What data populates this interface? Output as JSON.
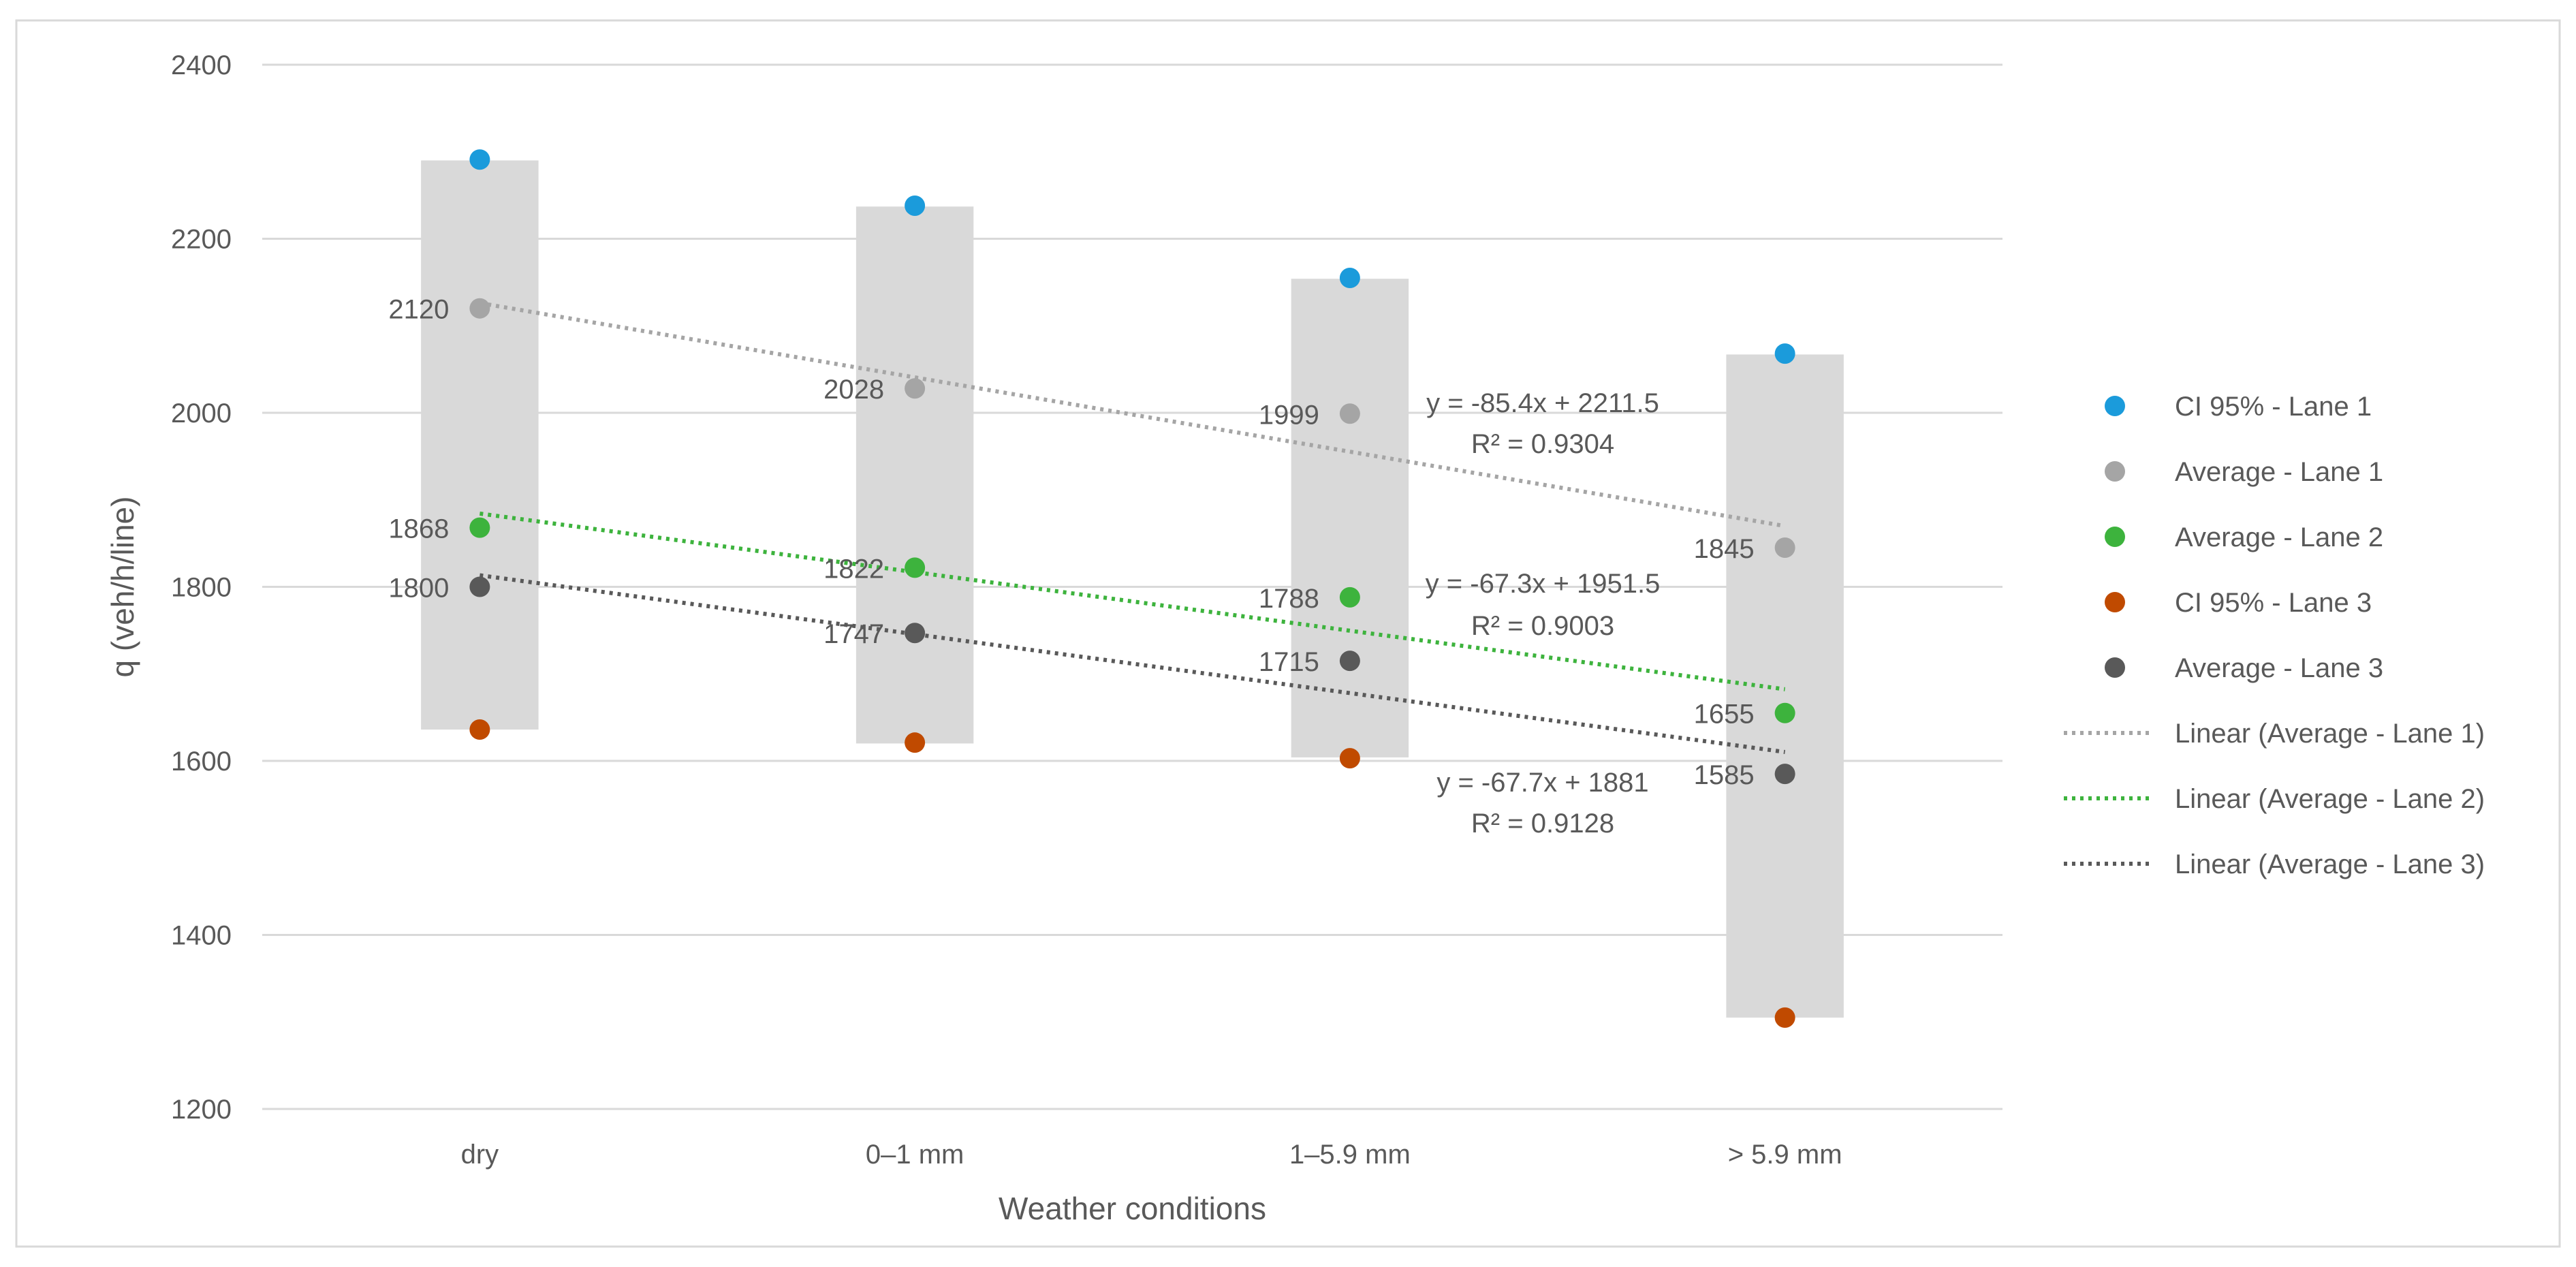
{
  "chart_data": {
    "type": "scatter",
    "title": "",
    "xlabel": "Weather conditions",
    "ylabel": "q (veh/h/line)",
    "categories": [
      "dry",
      "0–1 mm",
      "1–5.9 mm",
      "> 5.9 mm"
    ],
    "ylim": [
      1200,
      2400
    ],
    "yticks": [
      1200,
      1400,
      1600,
      1800,
      2000,
      2200,
      2400
    ],
    "grid": true,
    "legend_position": "right",
    "ci_bars": [
      {
        "category": "dry",
        "low": 1636,
        "high": 2290
      },
      {
        "category": "0–1 mm",
        "low": 1620,
        "high": 2237
      },
      {
        "category": "1–5.9 mm",
        "low": 1604,
        "high": 2154
      },
      {
        "category": "> 5.9 mm",
        "low": 1305,
        "high": 2067
      }
    ],
    "series": [
      {
        "name": "CI 95% - Lane 1",
        "color": "#1B9BDB",
        "values": [
          2291,
          2238,
          2155,
          2068
        ],
        "labels": [
          "",
          "",
          "",
          ""
        ]
      },
      {
        "name": "Average - Lane 1",
        "color": "#A5A5A5",
        "values": [
          2120,
          2028,
          1999,
          1845
        ],
        "labels": [
          "2120",
          "2028",
          "1999",
          "1845"
        ]
      },
      {
        "name": "Average - Lane 2",
        "color": "#3DB33D",
        "values": [
          1868,
          1822,
          1788,
          1655
        ],
        "labels": [
          "1868",
          "1822",
          "1788",
          "1655"
        ]
      },
      {
        "name": "CI 95% - Lane 3",
        "color": "#C04A00",
        "values": [
          1636,
          1621,
          1603,
          1305
        ],
        "labels": [
          "",
          "",
          "",
          ""
        ]
      },
      {
        "name": "Average - Lane 3",
        "color": "#595959",
        "values": [
          1800,
          1747,
          1715,
          1585
        ],
        "labels": [
          "1800",
          "1747",
          "1715",
          "1585"
        ]
      }
    ],
    "trendlines": [
      {
        "name": "Linear (Average - Lane 1)",
        "color": "#A5A5A5",
        "slope": -85.4,
        "intercept": 2211.5,
        "equation": "y = -85.4x + 2211.5",
        "r2": "R² = 0.9304"
      },
      {
        "name": "Linear (Average - Lane 2)",
        "color": "#3DB33D",
        "slope": -67.3,
        "intercept": 1951.5,
        "equation": "y = -67.3x + 1951.5",
        "r2": "R² = 0.9003"
      },
      {
        "name": "Linear (Average - Lane 3)",
        "color": "#595959",
        "slope": -67.7,
        "intercept": 1881,
        "equation": "y = -67.7x + 1881",
        "r2": "R² = 0.9128"
      }
    ]
  }
}
